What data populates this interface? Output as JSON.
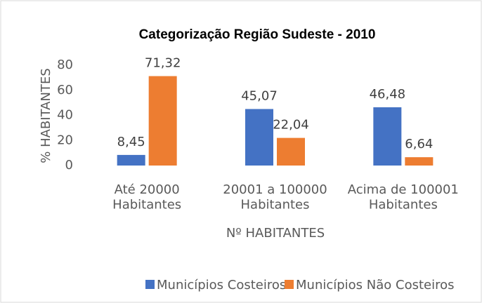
{
  "chart_data": {
    "type": "bar",
    "title": "Categorização Região Sudeste - 2010",
    "xlabel": "Nº HABITANTES",
    "ylabel": "% HABITANTES",
    "categories": [
      "Até 20000\nHabitantes",
      "20001 a 100000\nHabitantes",
      "Acima de 100001\nHabitantes"
    ],
    "series": [
      {
        "name": "Municípios Costeiros",
        "color": "#4472c4",
        "values": [
          8.45,
          45.07,
          46.48
        ],
        "value_labels": [
          "8,45",
          "45,07",
          "46,48"
        ]
      },
      {
        "name": "Municípios Não Costeiros",
        "color": "#ed7d31",
        "values": [
          71.32,
          22.04,
          6.64
        ],
        "value_labels": [
          "71,32",
          "22,04",
          "6,64"
        ]
      }
    ],
    "ylim": [
      0,
      80
    ],
    "yticks": [
      0,
      20,
      40,
      60,
      80
    ],
    "grid": false,
    "legend": "bottom"
  }
}
